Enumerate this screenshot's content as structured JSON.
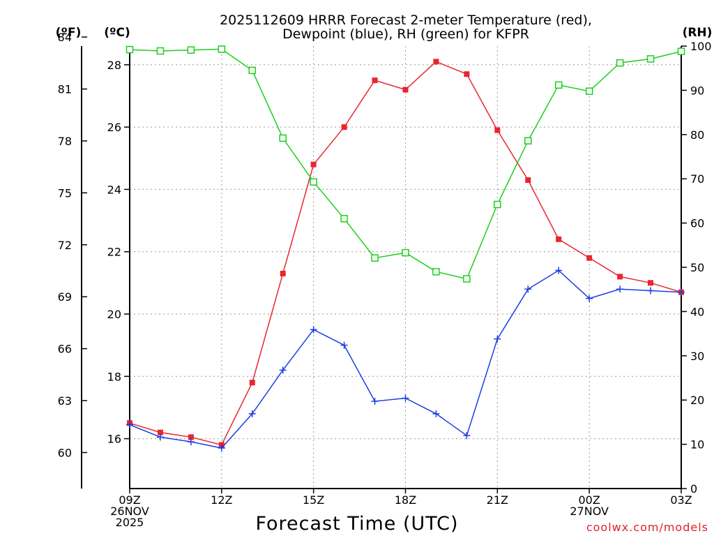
{
  "chart_data": {
    "type": "line",
    "title_line1": "2025112609 HRRR Forecast 2-meter Temperature (red),",
    "title_line2": "Dewpoint (blue), RH (green) for KFPR",
    "units": {
      "fahrenheit": "(ºF)",
      "celsius": "(ºC)",
      "rh": "(RH)"
    },
    "xlabel": "Forecast Time (UTC)",
    "credit": "coolwx.com/models",
    "x_ticks": [
      {
        "hour": 0,
        "lines": [
          "09Z",
          "26NOV",
          "2025"
        ]
      },
      {
        "hour": 3,
        "lines": [
          "12Z"
        ]
      },
      {
        "hour": 6,
        "lines": [
          "15Z"
        ]
      },
      {
        "hour": 9,
        "lines": [
          "18Z"
        ]
      },
      {
        "hour": 12,
        "lines": [
          "21Z"
        ]
      },
      {
        "hour": 15,
        "lines": [
          "00Z",
          "27NOV"
        ]
      },
      {
        "hour": 18,
        "lines": [
          "03Z"
        ]
      }
    ],
    "x_range": [
      0,
      18
    ],
    "celsius_range": [
      14.4,
      28.6
    ],
    "celsius_ticks": [
      16,
      18,
      20,
      22,
      24,
      26,
      28
    ],
    "fahrenheit_ticks": [
      60,
      63,
      66,
      69,
      72,
      75,
      78,
      81,
      84
    ],
    "rh_range": [
      0,
      100
    ],
    "rh_ticks": [
      0,
      10,
      20,
      30,
      40,
      50,
      60,
      70,
      80,
      90,
      100
    ],
    "hours": [
      0,
      1,
      2,
      3,
      4,
      5,
      6,
      7,
      8,
      9,
      10,
      11,
      12,
      13,
      14,
      15,
      16,
      17,
      18
    ],
    "series": [
      {
        "name": "Temperature",
        "unit": "C",
        "color": "#e8262e",
        "marker": "filled-square",
        "values": [
          16.5,
          16.2,
          16.05,
          15.8,
          17.8,
          21.3,
          24.8,
          26.0,
          27.5,
          27.2,
          28.1,
          27.7,
          25.9,
          24.3,
          22.4,
          21.8,
          21.2,
          21.0,
          20.7
        ]
      },
      {
        "name": "Dewpoint",
        "unit": "C",
        "color": "#1a3ee0",
        "marker": "plus",
        "values": [
          16.45,
          16.05,
          15.9,
          15.7,
          16.8,
          18.2,
          19.5,
          19.0,
          17.2,
          17.3,
          16.8,
          16.1,
          19.2,
          20.8,
          21.4,
          20.5,
          20.8,
          20.75,
          20.7
        ]
      },
      {
        "name": "RH",
        "unit": "%",
        "color": "#1ad01a",
        "marker": "open-square",
        "values": [
          99.2,
          98.9,
          99.1,
          99.3,
          94.5,
          79.2,
          69.3,
          61.0,
          52.1,
          53.3,
          49.0,
          47.4,
          64.2,
          78.6,
          91.2,
          89.8,
          96.2,
          97.1,
          98.8
        ]
      }
    ]
  }
}
